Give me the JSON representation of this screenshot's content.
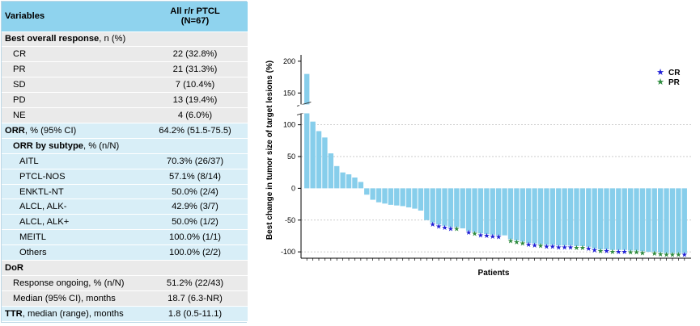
{
  "table": {
    "header": {
      "variables": "Variables",
      "population_line1": "All r/r PTCL",
      "population_line2": "(N=67)"
    },
    "best_response": {
      "label_bold": "Best overall response",
      "label_rest": ", n (%)"
    },
    "responses": [
      {
        "label": "CR",
        "value": "22 (32.8%)"
      },
      {
        "label": "PR",
        "value": "21 (31.3%)"
      },
      {
        "label": "SD",
        "value": "7 (10.4%)"
      },
      {
        "label": "PD",
        "value": "13 (19.4%)"
      },
      {
        "label": "NE",
        "value": "4 (6.0%)"
      }
    ],
    "orr": {
      "label_bold": "ORR",
      "label_rest": ", % (95% CI)",
      "value": "64.2% (51.5-75.5)"
    },
    "orr_subtype": {
      "label_bold": "ORR by subtype",
      "label_rest": ", % (n/N)"
    },
    "subtypes": [
      {
        "label": "AITL",
        "value": "70.3% (26/37)"
      },
      {
        "label": "PTCL-NOS",
        "value": "57.1% (8/14)"
      },
      {
        "label": "ENKTL-NT",
        "value": "50.0% (2/4)"
      },
      {
        "label": "ALCL, ALK-",
        "value": "42.9% (3/7)"
      },
      {
        "label": "ALCL, ALK+",
        "value": "50.0% (1/2)"
      },
      {
        "label": "MEITL",
        "value": "100.0% (1/1)"
      },
      {
        "label": "Others",
        "value": "100.0% (2/2)"
      }
    ],
    "dor": {
      "label": "DoR"
    },
    "dor_rows": [
      {
        "label": "Response ongoing, % (n/N)",
        "value": "51.2% (22/43)"
      },
      {
        "label": "Median (95% CI), months",
        "value": "18.7 (6.3-NR)"
      }
    ],
    "ttr": {
      "label_bold": "TTR",
      "label_rest": ", median (range), months",
      "value": "1.8 (0.5-11.1)"
    }
  },
  "colors": {
    "header_bg": "#8fd3ee",
    "band_light_blue": "#d8eef7",
    "band_gray": "#eaeaea",
    "bar": "#87ceeb",
    "cr_star": "#1f1fd6",
    "pr_star": "#2e8b3e",
    "grid": "#bbbbbb"
  },
  "chart_data": {
    "type": "bar",
    "title": "",
    "xlabel": "Patients",
    "ylabel": "Best change in tumor size of target lesions (%)",
    "ylim": [
      -110,
      210
    ],
    "yticks": [
      -100,
      -50,
      0,
      50,
      100,
      150,
      200
    ],
    "axis_break": "between 100 and 150",
    "gridlines": [
      -100,
      -50,
      50,
      100
    ],
    "legend": {
      "position": "top-right",
      "entries": [
        {
          "label": "CR",
          "marker": "star"
        },
        {
          "label": "PR",
          "marker": "star"
        }
      ]
    },
    "values": [
      180,
      105,
      90,
      80,
      55,
      35,
      25,
      22,
      17,
      10,
      -10,
      -18,
      -22,
      -24,
      -26,
      -27,
      -28,
      -30,
      -32,
      -35,
      -50,
      -54,
      -57,
      -59,
      -61,
      -61,
      -63,
      -67,
      -69,
      -71,
      -72,
      -73,
      -74,
      -74,
      -80,
      -82,
      -84,
      -86,
      -87,
      -88,
      -89,
      -89,
      -90,
      -90,
      -90,
      -91,
      -91,
      -92,
      -95,
      -96,
      -96,
      -97,
      -97,
      -97,
      -98,
      -98,
      -99,
      -100,
      -100,
      -101,
      -102,
      -102,
      -102,
      -102
    ],
    "response": [
      "",
      "",
      "",
      "",
      "",
      "",
      "",
      "",
      "",
      "",
      "",
      "",
      "",
      "",
      "",
      "",
      "",
      "",
      "",
      "",
      "",
      "CR",
      "CR",
      "CR",
      "CR",
      "PR",
      "",
      "CR",
      "PR",
      "CR",
      "CR",
      "CR",
      "CR",
      "",
      "PR",
      "PR",
      "PR",
      "CR",
      "CR",
      "PR",
      "CR",
      "CR",
      "CR",
      "CR",
      "CR",
      "PR",
      "PR",
      "CR",
      "CR",
      "PR",
      "CR",
      "PR",
      "CR",
      "CR",
      "PR",
      "PR",
      "PR",
      "",
      "PR",
      "PR",
      "PR",
      "PR",
      "PR",
      "CR"
    ]
  }
}
